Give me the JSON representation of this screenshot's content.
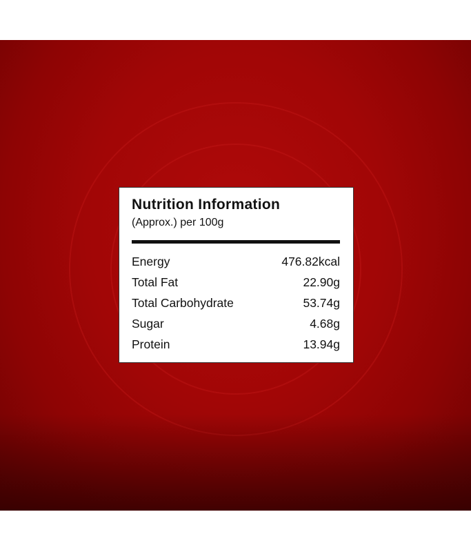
{
  "title": "Nutrition Information",
  "subtitle": "(Approx.) per 100g",
  "rows": [
    {
      "label": "Energy",
      "value": "476.82kcal"
    },
    {
      "label": "Total Fat",
      "value": "22.90g"
    },
    {
      "label": "Total Carbohydrate",
      "value": "53.74g"
    },
    {
      "label": "Sugar",
      "value": "4.68g"
    },
    {
      "label": "Protein",
      "value": "13.94g"
    }
  ],
  "colors": {
    "background": "#a10606",
    "panel": "#ffffff",
    "text": "#111111"
  }
}
